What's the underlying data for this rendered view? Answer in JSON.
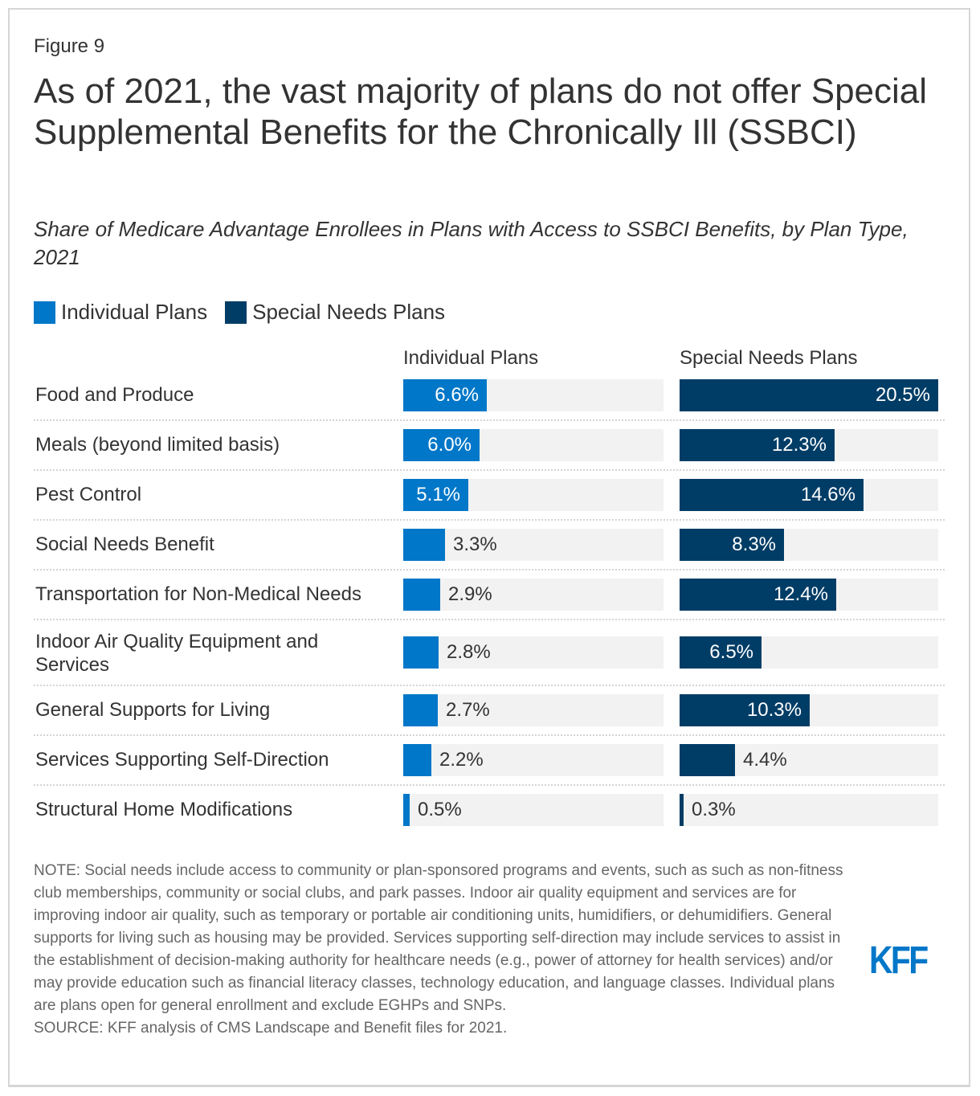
{
  "figure_label": "Figure 9",
  "title": "As of 2021, the vast majority of plans do not offer Special Supplemental Benefits for the Chronically Ill (SSBCI)",
  "subtitle": "Share of Medicare Advantage Enrollees in Plans with Access to SSBCI Benefits, by Plan Type, 2021",
  "legend": [
    {
      "label": "Individual Plans",
      "color": "#0077c8"
    },
    {
      "label": "Special Needs Plans",
      "color": "#003d66"
    }
  ],
  "note": "NOTE: Social needs include access to community or plan-sponsored programs and events, such as such as non-fitness club memberships, community or social clubs, and park passes. Indoor air quality equipment and services are for improving indoor air quality, such as temporary or portable air conditioning units, humidifiers, or dehumidifiers. General supports for living such as housing may be provided. Services supporting self-direction may include services to assist in the establishment of decision-making authority for healthcare needs (e.g., power of attorney for health services) and/or may provide education such as financial literacy classes, technology education, and language classes. Individual plans are plans open for general enrollment and exclude EGHPs and SNPs.",
  "source": "SOURCE: KFF analysis of CMS Landscape and Benefit files for 2021.",
  "logo": "KFF",
  "chart_data": {
    "type": "bar",
    "orientation": "horizontal",
    "title": "As of 2021, the vast majority of plans do not offer Special Supplemental Benefits for the Chronically Ill (SSBCI)",
    "subtitle": "Share of Medicare Advantage Enrollees in Plans with Access to SSBCI Benefits, by Plan Type, 2021",
    "xlabel": "",
    "ylabel": "",
    "unit": "%",
    "xlim": [
      0,
      20.5
    ],
    "legend_position": "top-left",
    "grid": false,
    "categories": [
      "Food and Produce",
      "Meals (beyond limited basis)",
      "Pest Control",
      "Social Needs Benefit",
      "Transportation for Non-Medical Needs",
      "Indoor Air Quality Equipment and Services",
      "General Supports for Living",
      "Services Supporting Self-Direction",
      "Structural Home Modifications"
    ],
    "series": [
      {
        "name": "Individual Plans",
        "color": "#0077c8",
        "values": [
          6.6,
          6.0,
          5.1,
          3.3,
          2.9,
          2.8,
          2.7,
          2.2,
          0.5
        ]
      },
      {
        "name": "Special Needs Plans",
        "color": "#003d66",
        "values": [
          20.5,
          12.3,
          14.6,
          8.3,
          12.4,
          6.5,
          10.3,
          4.4,
          0.3
        ]
      }
    ]
  }
}
